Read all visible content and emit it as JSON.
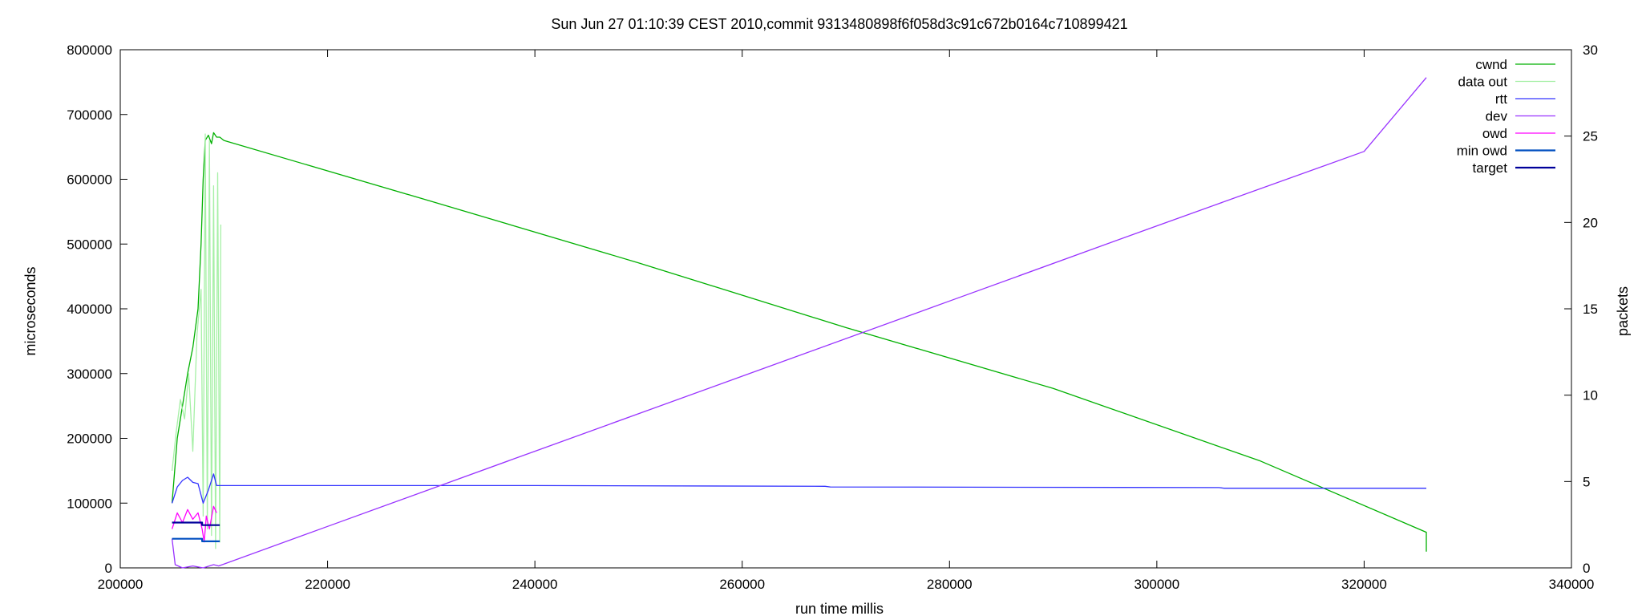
{
  "chart_data": {
    "type": "line",
    "title": "Sun Jun 27 01:10:39 CEST 2010,commit 9313480898f6f058d3c91c672b0164c710899421",
    "xlabel": "run time millis",
    "ylabel": "microseconds",
    "y2label": "packets",
    "xlim": [
      200000,
      340000
    ],
    "ylim": [
      0,
      800000
    ],
    "y2lim": [
      0,
      30
    ],
    "xticks": [
      "200000",
      "220000",
      "240000",
      "260000",
      "280000",
      "300000",
      "320000",
      "340000"
    ],
    "yticks": [
      "0",
      "100000",
      "200000",
      "300000",
      "400000",
      "500000",
      "600000",
      "700000",
      "800000"
    ],
    "y2ticks": [
      "0",
      "5",
      "10",
      "15",
      "20",
      "25",
      "30"
    ],
    "grid": false,
    "legend_position": "top-right",
    "series": [
      {
        "name": "cwnd",
        "color": "#00b000",
        "axis": "y",
        "x": [
          205000,
          205500,
          206000,
          206500,
          207000,
          207500,
          207800,
          208000,
          208200,
          208500,
          208800,
          209000,
          209300,
          209600,
          210000,
          230000,
          250000,
          270000,
          290000,
          310000,
          326000,
          326000
        ],
        "y": [
          100000,
          200000,
          250000,
          300000,
          340000,
          400000,
          500000,
          600000,
          660000,
          668000,
          655000,
          672000,
          665000,
          665000,
          660000,
          566000,
          471000,
          371000,
          277000,
          165000,
          55000,
          25000
        ]
      },
      {
        "name": "data out",
        "color": "#a6f0a6",
        "axis": "y",
        "x": [
          205000,
          205400,
          205800,
          206200,
          206600,
          207000,
          207400,
          207800,
          208000,
          208200,
          208400,
          208600,
          208800,
          209000,
          209200,
          209400,
          209600,
          209700
        ],
        "y": [
          150000,
          210000,
          260000,
          230000,
          300000,
          180000,
          360000,
          430000,
          80000,
          670000,
          60000,
          660000,
          50000,
          590000,
          30000,
          610000,
          40000,
          530000
        ]
      },
      {
        "name": "rtt",
        "color": "#3333ff",
        "axis": "y",
        "x": [
          205000,
          205500,
          206000,
          206500,
          207000,
          207500,
          208000,
          208500,
          209000,
          209300,
          210000,
          240000,
          268000,
          268500,
          306000,
          306500,
          326000
        ],
        "y": [
          100000,
          125000,
          135000,
          140000,
          132000,
          130000,
          100000,
          120000,
          145000,
          127000,
          127000,
          127000,
          126000,
          125000,
          124000,
          123000,
          123000
        ]
      },
      {
        "name": "dev",
        "color": "#9933ff",
        "axis": "y",
        "x": [
          205000,
          205300,
          206000,
          207000,
          208000,
          209000,
          209500,
          220000,
          240000,
          260000,
          280000,
          300000,
          320000,
          326000
        ],
        "y": [
          45000,
          5000,
          0,
          3000,
          0,
          5000,
          3000,
          64000,
          180000,
          296000,
          412000,
          528000,
          643000,
          757000
        ]
      },
      {
        "name": "owd",
        "color": "#ff00ff",
        "axis": "y",
        "x": [
          205000,
          205500,
          206000,
          206500,
          207000,
          207500,
          207900,
          208100,
          208300,
          208600,
          209000,
          209300
        ],
        "y": [
          60000,
          85000,
          70000,
          90000,
          75000,
          85000,
          60000,
          40000,
          80000,
          60000,
          95000,
          85000
        ]
      },
      {
        "name": "min owd",
        "color": "#004fc0",
        "axis": "y",
        "x": [
          205000,
          207900,
          207900,
          209600
        ],
        "y": [
          45000,
          45000,
          41000,
          41000
        ]
      },
      {
        "name": "target",
        "color": "#00009a",
        "axis": "y",
        "x": [
          205000,
          207900,
          207900,
          209600
        ],
        "y": [
          70000,
          70000,
          66000,
          66000
        ]
      }
    ]
  }
}
